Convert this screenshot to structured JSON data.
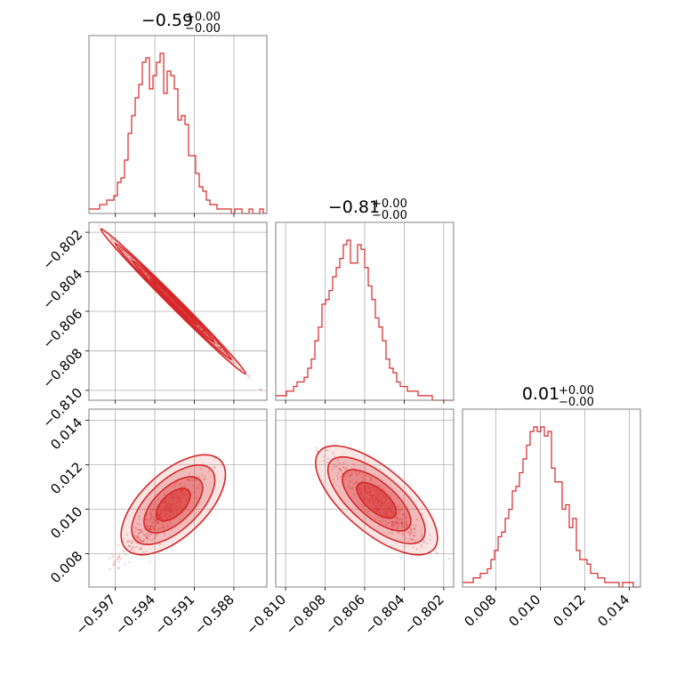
{
  "colors": {
    "series": "#d62728",
    "frame": "#808080",
    "grid": "#b0b0b0"
  },
  "chart_data": {
    "type": "corner",
    "parameters": [
      {
        "title": {
          "value": "−0.59",
          "plus": "+0.00",
          "minus": "−0.00"
        },
        "range": [
          -0.599,
          -0.5855
        ],
        "ticks": [
          -0.597,
          -0.594,
          -0.591,
          -0.588
        ],
        "tick_labels": [
          "−0.597",
          "−0.594",
          "−0.591",
          "−0.588"
        ],
        "hist": {
          "start": -0.599,
          "step": 0.00027,
          "counts": [
            1,
            1,
            1,
            2,
            2,
            3,
            3,
            4,
            7,
            8,
            12,
            18,
            22,
            26,
            29,
            34,
            35,
            28,
            31,
            34,
            36,
            27,
            32,
            31,
            28,
            21,
            22,
            20,
            13,
            13,
            9,
            6,
            5,
            3,
            2,
            2,
            1,
            1,
            1,
            1,
            0,
            1,
            1,
            0,
            0,
            1,
            0,
            0,
            1,
            0
          ]
        }
      },
      {
        "title": {
          "value": "−0.81",
          "plus": "+0.00",
          "minus": "−0.00"
        },
        "range": [
          -0.8105,
          -0.8015
        ],
        "ticks": [
          -0.81,
          -0.808,
          -0.806,
          -0.804,
          -0.802
        ],
        "tick_labels": [
          "−0.810",
          "−0.808",
          "−0.806",
          "−0.804",
          "−0.802"
        ],
        "y_tick_labels": [
          "−0.802",
          "−0.804",
          "−0.806",
          "−0.808",
          "−0.810"
        ],
        "hist": {
          "start": -0.8105,
          "step": 0.00018,
          "counts": [
            1,
            1,
            1,
            2,
            2,
            3,
            4,
            4,
            5,
            7,
            9,
            13,
            16,
            21,
            22,
            24,
            27,
            29,
            31,
            34,
            35,
            30,
            30,
            34,
            33,
            29,
            25,
            22,
            18,
            16,
            13,
            9,
            7,
            6,
            4,
            3,
            3,
            2,
            2,
            2,
            1,
            1,
            1,
            1,
            0,
            0,
            0,
            0,
            0,
            0
          ]
        }
      },
      {
        "title": {
          "value": "0.01",
          "plus": "+0.00",
          "minus": "−0.00"
        },
        "range": [
          0.0065,
          0.0145
        ],
        "ticks": [
          0.008,
          0.01,
          0.012,
          0.014
        ],
        "tick_labels": [
          "0.008",
          "0.010",
          "0.012",
          "0.014"
        ],
        "y_tick_labels": [
          "0.008",
          "0.010",
          "0.012",
          "0.014"
        ],
        "hist": {
          "start": 0.0065,
          "step": 0.00016,
          "counts": [
            1,
            1,
            1,
            2,
            2,
            3,
            3,
            4,
            6,
            8,
            11,
            12,
            15,
            17,
            21,
            22,
            25,
            28,
            31,
            34,
            35,
            34,
            35,
            33,
            34,
            26,
            23,
            23,
            17,
            18,
            13,
            15,
            8,
            6,
            6,
            5,
            3,
            3,
            2,
            2,
            1,
            1,
            1,
            1,
            0,
            1,
            1,
            1,
            0,
            0
          ]
        }
      }
    ],
    "pairs": [
      {
        "x_param": 0,
        "y_param": 1,
        "center": [
          -0.5926,
          -0.8055
        ],
        "slope": -1.0,
        "halfwidth": 8e-05,
        "extent": [
          -0.5978,
          -0.5868
        ]
      },
      {
        "x_param": 0,
        "y_param": 2,
        "center": [
          -0.5926,
          0.0102
        ],
        "slope": 0.93,
        "halfwidth": 0.00045,
        "extent": [
          -0.5972,
          -0.59
        ]
      },
      {
        "x_param": 1,
        "y_param": 2,
        "center": [
          -0.8054,
          0.0104
        ],
        "slope": -0.85,
        "halfwidth": 0.00045,
        "extent": [
          -0.808,
          -0.8022
        ]
      }
    ]
  }
}
